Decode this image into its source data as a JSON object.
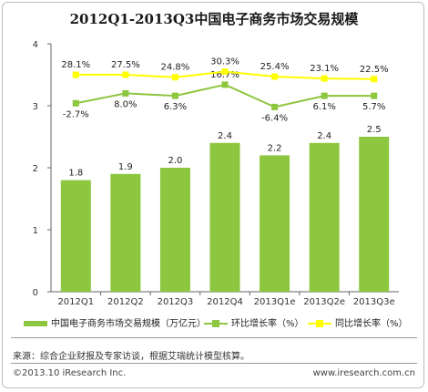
{
  "title": "2012Q1-2013Q3中国电子商务市场交易规模",
  "chart_data": {
    "type": "bar",
    "categories": [
      "2012Q1",
      "2012Q2",
      "2012Q3",
      "2012Q4",
      "2013Q1e",
      "2013Q2e",
      "2013Q3e"
    ],
    "ylim": [
      0,
      4
    ],
    "yticks": [
      0,
      1,
      2,
      3,
      4
    ],
    "grid": false,
    "series": [
      {
        "name": "中国电子商务市场交易规模（万亿元）",
        "kind": "bar",
        "color": "#8dc63f",
        "values": [
          1.8,
          1.9,
          2.0,
          2.4,
          2.2,
          2.4,
          2.5
        ],
        "labels": [
          "1.8",
          "1.9",
          "2.0",
          "2.4",
          "2.2",
          "2.4",
          "2.5"
        ]
      },
      {
        "name": "环比增长率（%）",
        "kind": "line",
        "color": "#8dc63f",
        "plot_y": [
          3.04,
          3.2,
          3.16,
          3.34,
          2.98,
          3.16,
          3.16
        ],
        "labels": [
          "-2.7%",
          "8.0%",
          "6.3%",
          "16.7%",
          "-6.4%",
          "6.1%",
          "5.7%"
        ]
      },
      {
        "name": "同比增长率（%）",
        "kind": "line",
        "color": "#ffff00",
        "plot_y": [
          3.5,
          3.5,
          3.46,
          3.55,
          3.47,
          3.44,
          3.43
        ],
        "labels": [
          "28.1%",
          "27.5%",
          "24.8%",
          "30.3%",
          "25.4%",
          "23.1%",
          "22.5%"
        ]
      }
    ],
    "legend_position": "bottom"
  },
  "legend": {
    "bar_label": "中国电子商务市场交易规模（万亿元）",
    "mom_label": "环比增长率（%）",
    "yoy_label": "同比增长率（%）"
  },
  "footer": {
    "source": "来源：综合企业财报及专家访谈，根据艾瑞统计模型核算。",
    "copyright": "©2013.10 iResearch Inc.",
    "website": "www.iresearch.com.cn"
  }
}
